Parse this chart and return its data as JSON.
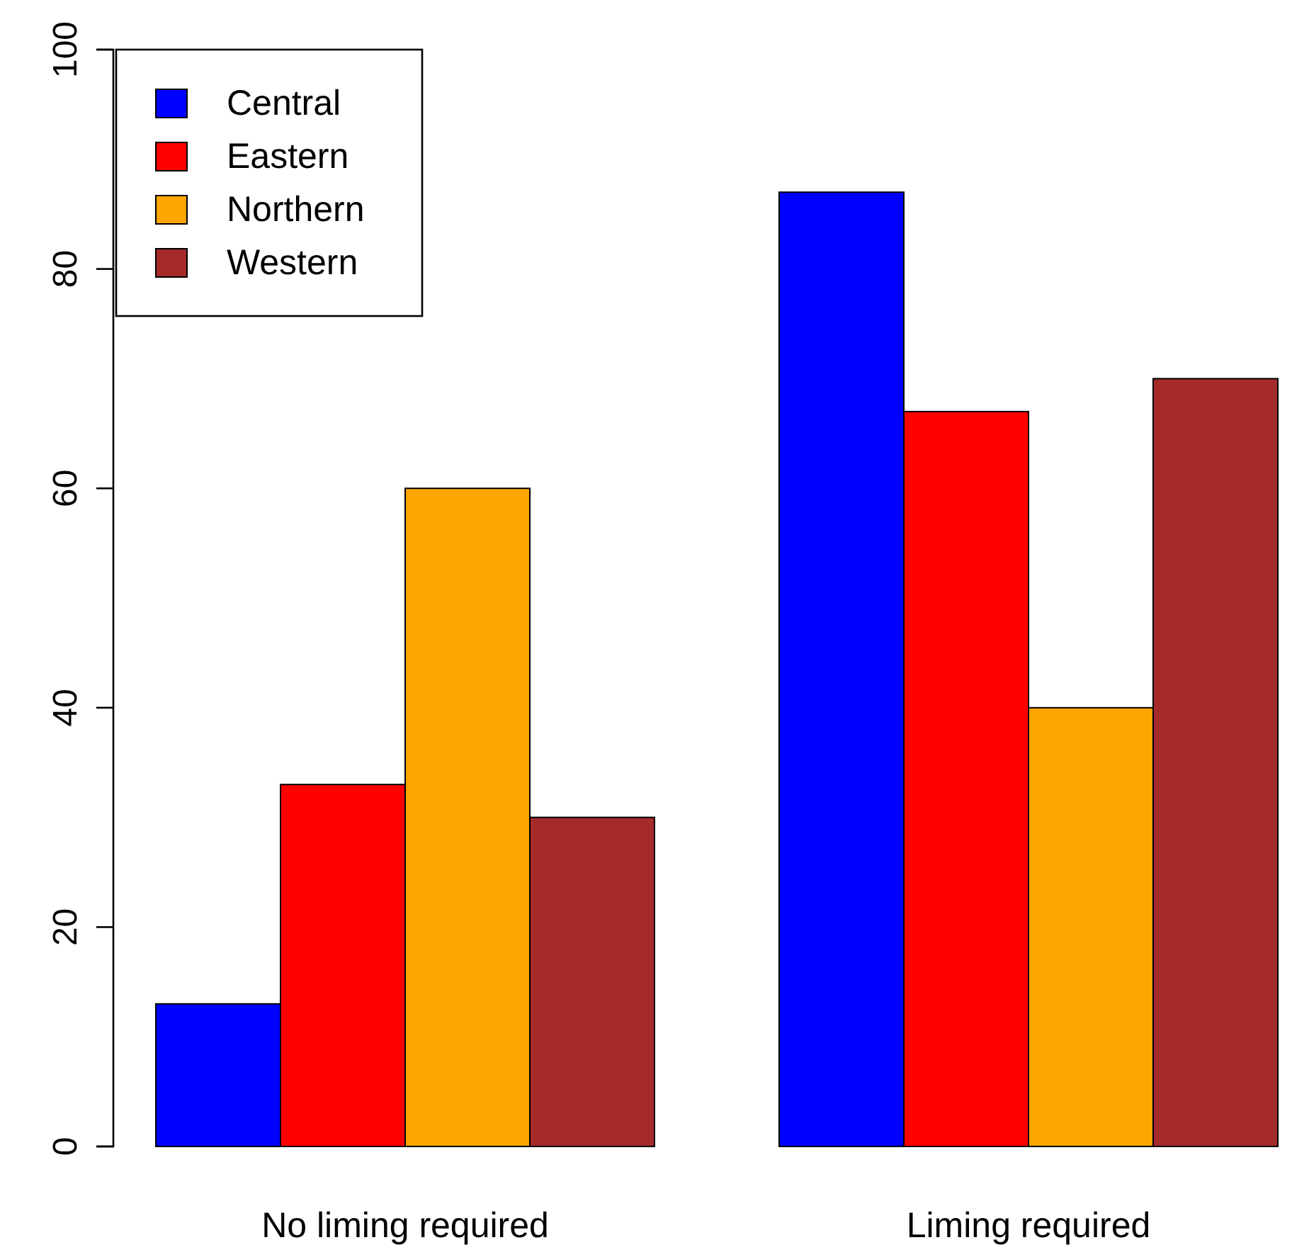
{
  "chart_data": {
    "type": "bar",
    "categories": [
      "No liming required",
      "Liming required"
    ],
    "series": [
      {
        "name": "Central",
        "color": "#0000ff",
        "values": [
          13,
          87
        ]
      },
      {
        "name": "Eastern",
        "color": "#ff0000",
        "values": [
          33,
          67
        ]
      },
      {
        "name": "Northern",
        "color": "#ffa500",
        "values": [
          60,
          40
        ]
      },
      {
        "name": "Western",
        "color": "#a52a2a",
        "values": [
          30,
          70
        ]
      }
    ],
    "ylim": [
      0,
      100
    ],
    "yticks": [
      0,
      20,
      40,
      60,
      80,
      100
    ],
    "legend": "top left",
    "grid": false
  }
}
